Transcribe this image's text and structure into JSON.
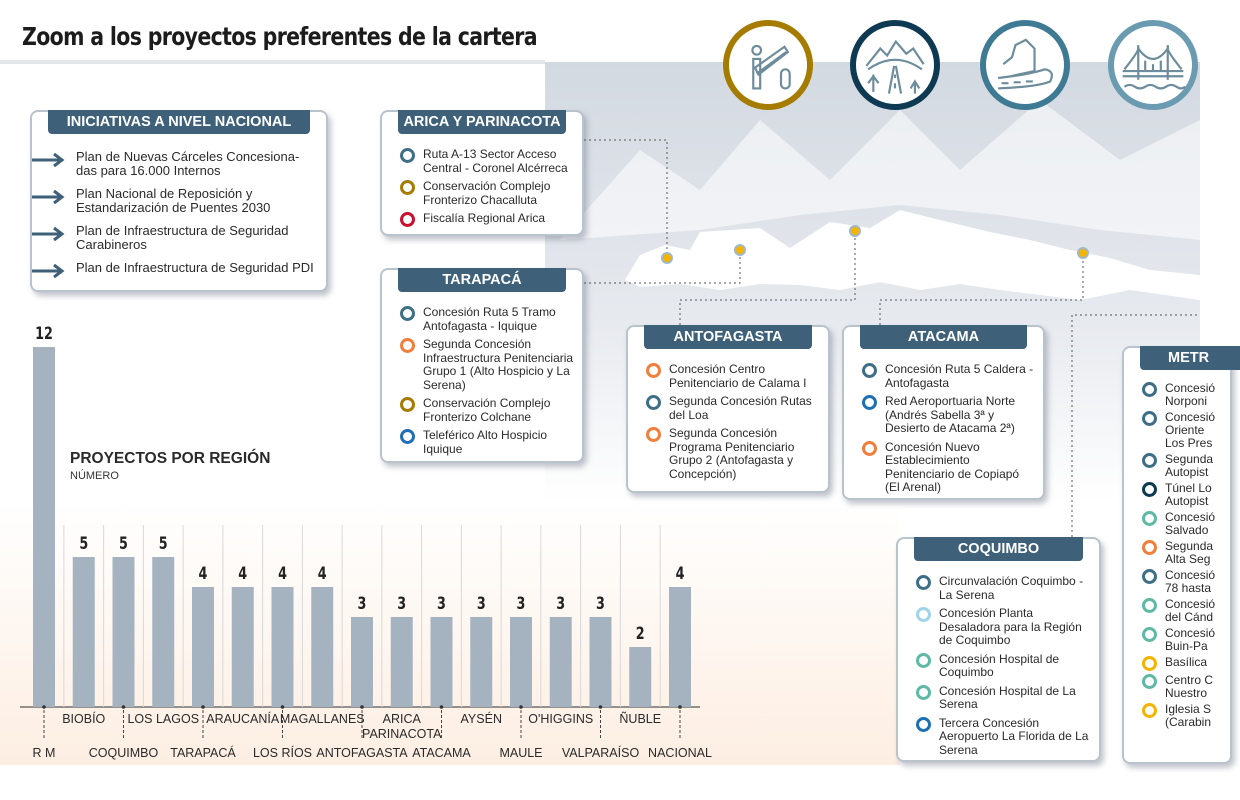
{
  "title": "Zoom a los proyectos preferentes de la cartera",
  "colors": {
    "header": "#3e6079",
    "bar": "#a5b3c1",
    "steel": "#3f6f87",
    "gold": "#a67c00",
    "red": "#c8102e",
    "orange": "#f07f3c",
    "blue": "#1f6fb5",
    "light_blue": "#9fd4ea",
    "green": "#5fb9a5",
    "navy": "#0d3a52",
    "yellow": "#f4b400"
  },
  "top_icons": [
    {
      "name": "border-crossing-icon",
      "color": "#a67c00"
    },
    {
      "name": "mountain-road-icon",
      "color": "#0d3a52"
    },
    {
      "name": "cliff-road-icon",
      "color": "#3f7a94"
    },
    {
      "name": "bridge-icon",
      "color": "#6a9bb0"
    }
  ],
  "nacional": {
    "header": "INICIATIVAS A NIVEL NACIONAL",
    "items": [
      "Plan de Nuevas Cárceles Concesiona-das para 16.000 Internos",
      "Plan Nacional de Reposición y Estandarización de Puentes 2030",
      "Plan de Infraestructura de Seguridad Carabineros",
      "Plan de Infraestructura de Seguridad PDI"
    ]
  },
  "regions": [
    {
      "id": "arica",
      "header": "ARICA Y PARINACOTA",
      "items": [
        {
          "text": "Ruta A-13 Sector Acceso Central - Coronel Alcérreca",
          "color": "steel"
        },
        {
          "text": "Conservación Complejo Fronterizo Chacalluta",
          "color": "gold"
        },
        {
          "text": "Fiscalía Regional Arica",
          "color": "red"
        }
      ]
    },
    {
      "id": "tarapaca",
      "header": "TARAPACÁ",
      "items": [
        {
          "text": "Concesión Ruta 5 Tramo Antofagasta - Iquique",
          "color": "steel"
        },
        {
          "text": "Segunda Concesión Infraestructura Penitenciaria Grupo 1 (Alto Hospicio y La Serena)",
          "color": "orange"
        },
        {
          "text": "Conservación Complejo Fronterizo Colchane",
          "color": "gold"
        },
        {
          "text": "Teleférico Alto Hospicio Iquique",
          "color": "blue"
        }
      ]
    },
    {
      "id": "antofagasta",
      "header": "ANTOFAGASTA",
      "items": [
        {
          "text": "Concesión Centro Penitenciario de Calama I",
          "color": "orange"
        },
        {
          "text": "Segunda Concesión Rutas del Loa",
          "color": "steel"
        },
        {
          "text": "Segunda Concesión Programa Penitenciario Grupo 2 (Antofagasta y Concepción)",
          "color": "orange"
        }
      ]
    },
    {
      "id": "atacama",
      "header": "ATACAMA",
      "items": [
        {
          "text": "Concesión Ruta 5 Caldera - Antofagasta",
          "color": "steel"
        },
        {
          "text": "Red Aeroportuaria Norte (Andrés Sabella 3ª y Desierto de Atacama 2ª)",
          "color": "blue"
        },
        {
          "text": "Concesión Nuevo Establecimiento Penitenciario de Copiapó (El Arenal)",
          "color": "orange"
        }
      ]
    },
    {
      "id": "coquimbo",
      "header": "COQUIMBO",
      "items": [
        {
          "text": "Circunvalación Coquimbo - La Serena",
          "color": "steel"
        },
        {
          "text": "Concesión Planta Desaladora para la Región de Coquimbo",
          "color": "light_blue"
        },
        {
          "text": "Concesión Hospital de Coquimbo",
          "color": "green"
        },
        {
          "text": "Concesión Hospital de La Serena",
          "color": "green"
        },
        {
          "text": "Tercera Concesión Aeropuerto La Florida de La Serena",
          "color": "blue"
        }
      ]
    },
    {
      "id": "metro",
      "header": "METR",
      "items": [
        {
          "text": "Concesió Norponi",
          "color": "steel"
        },
        {
          "text": "Concesió Oriente Los Pres",
          "color": "steel"
        },
        {
          "text": "Segunda Autopist",
          "color": "steel"
        },
        {
          "text": "Túnel Lo Autopist",
          "color": "navy"
        },
        {
          "text": "Concesió Salvado",
          "color": "green"
        },
        {
          "text": "Segunda Alta Seg",
          "color": "orange"
        },
        {
          "text": "Concesió 78 hasta",
          "color": "steel"
        },
        {
          "text": "Concesió del Cánd",
          "color": "green"
        },
        {
          "text": "Concesió Buin-Pa",
          "color": "green"
        },
        {
          "text": "Basílica",
          "color": "yellow"
        },
        {
          "text": "Centro C Nuestro",
          "color": "green"
        },
        {
          "text": "Iglesia S (Carabin",
          "color": "yellow"
        }
      ]
    }
  ],
  "chart_data": {
    "type": "bar",
    "title": "PROYECTOS POR REGIÓN",
    "subtitle": "NÚMERO",
    "categories": [
      "R M",
      "BIOBÍO",
      "COQUIMBO",
      "LOS LAGOS",
      "TARAPACÁ",
      "ARAUCANÍA",
      "LOS RÍOS",
      "MAGALLANES",
      "ANTOFAGASTA",
      "ARICA PARINACOTA",
      "ATACAMA",
      "AYSÉN",
      "MAULE",
      "O'HIGGINS",
      "VALPARAÍSO",
      "ÑUBLE",
      "NACIONAL"
    ],
    "values": [
      12,
      5,
      5,
      5,
      4,
      4,
      4,
      4,
      3,
      3,
      3,
      3,
      3,
      3,
      3,
      2,
      4
    ],
    "ylim": [
      0,
      12
    ],
    "grid": "vertical separators",
    "data_labels": true,
    "bar_color": "#a5b3c1"
  }
}
